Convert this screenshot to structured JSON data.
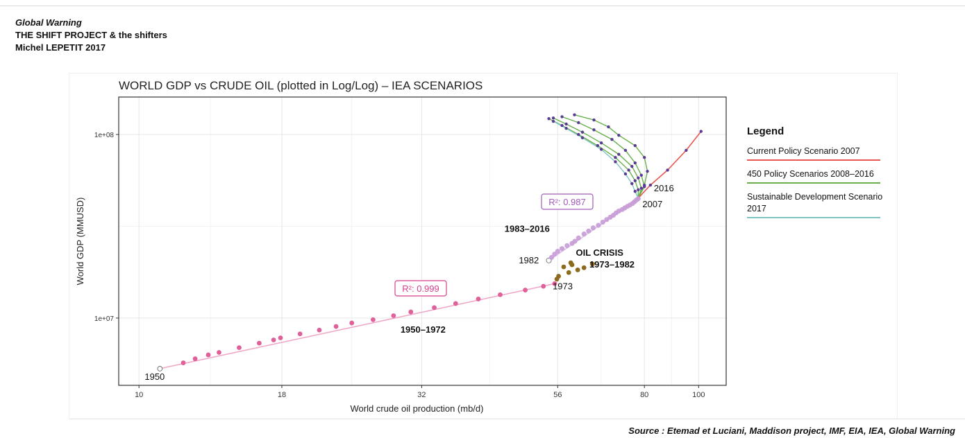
{
  "header": {
    "line1": "Global Warning",
    "line2": "THE SHIFT PROJECT & the shifters",
    "line3": "Michel LEPETIT 2017"
  },
  "source": "Source : Etemad et Luciani, Maddison project, IMF, EIA, IEA, Global Warning",
  "legend": {
    "title": "Legend",
    "items": [
      {
        "label": "Current Policy Scenario 2007",
        "color": "#e8574f"
      },
      {
        "label": "450 Policy Scenarios 2008–2016",
        "color": "#66b04a"
      },
      {
        "label": "Sustainable Development Scenario 2017",
        "color": "#7fc4c4"
      }
    ]
  },
  "chart_data": {
    "type": "scatter",
    "title": "WORLD GDP vs CRUDE OIL (plotted in Log/Log) – IEA SCENARIOS",
    "xlabel": "World crude oil production (mb/d)",
    "ylabel": "World GDP (MMUSD)",
    "x_scale": "log",
    "y_scale": "log",
    "xlim": [
      9.2,
      112
    ],
    "ylim": [
      4300000,
      160000000
    ],
    "x_ticks": [
      10,
      18,
      32,
      56,
      80,
      100
    ],
    "x_tick_labels": [
      "10",
      "18",
      "32",
      "56",
      "80",
      "100"
    ],
    "y_ticks": [
      10000000,
      100000000
    ],
    "y_tick_labels": [
      "1e+07",
      "1e+08"
    ],
    "grid": true,
    "colors": {
      "series_1950_1972": "#e0609a",
      "series_oil_crisis": "#8b6a1c",
      "series_1983_2016": "#c79bd6",
      "scenario_points": "#5a3c96",
      "current_policy": "#e8574f",
      "policy_450": "#66b04a",
      "sustainable": "#7fc4c4",
      "r2_1950": "#d63f8c",
      "r2_1983": "#a05ab8"
    },
    "series": [
      {
        "name": "1950–1972",
        "fit_r2": "R²: 0.999",
        "x": [
          10.9,
          12.0,
          12.6,
          13.3,
          13.9,
          15.1,
          16.4,
          17.4,
          17.9,
          19.4,
          21.0,
          22.5,
          24.0,
          26.2,
          28.5,
          30.6,
          33.7,
          36.8,
          40.4,
          44.2,
          49.0,
          52.8,
          55.3
        ],
        "y": [
          5300000,
          5700000,
          6000000,
          6300000,
          6500000,
          6900000,
          7300000,
          7600000,
          7800000,
          8200000,
          8600000,
          9000000,
          9400000,
          9800000,
          10300000,
          10800000,
          11400000,
          12000000,
          12700000,
          13400000,
          14200000,
          14900000,
          15400000
        ]
      },
      {
        "name": "OIL CRISIS 1973–1982",
        "x": [
          55.8,
          56.2,
          57.4,
          58.6,
          59.1,
          59.4,
          60.8,
          62.4,
          64.6
        ],
        "y": [
          16300000,
          16900000,
          19000000,
          17700000,
          20000000,
          19500000,
          18300000,
          18800000,
          19700000
        ]
      },
      {
        "name": "1983–2016",
        "fit_r2": "R²: 0.987",
        "x": [
          54.0,
          54.6,
          55.3,
          56.0,
          57.0,
          58.2,
          59.4,
          60.1,
          61.0,
          62.4,
          63.6,
          64.8,
          66.2,
          67.4,
          68.5,
          69.5,
          70.4,
          71.2,
          72.0,
          73.0,
          73.8,
          74.6,
          75.4,
          76.2,
          76.8,
          77.4,
          78.0
        ],
        "y": [
          20600000,
          21400000,
          22300000,
          23100000,
          23900000,
          24800000,
          25500000,
          26200000,
          27300000,
          28700000,
          29800000,
          31000000,
          32000000,
          33300000,
          34400000,
          35400000,
          36300000,
          37400000,
          38300000,
          39000000,
          39800000,
          40600000,
          41300000,
          42100000,
          43000000,
          43900000,
          44700000
        ]
      }
    ],
    "scenarios": {
      "current_policy": {
        "x": [
          78,
          82,
          88,
          95,
          101
        ],
        "y": [
          45000000,
          53000000,
          64000000,
          82000000,
          104000000
        ]
      },
      "policy_450": [
        {
          "x": [
            78,
            80,
            81,
            80,
            77,
            72,
            69,
            65,
            60
          ],
          "y": [
            45000000,
            53000000,
            63000000,
            75000000,
            87000000,
            99000000,
            110000000,
            120000000,
            128000000
          ]
        },
        {
          "x": [
            78,
            80,
            79,
            77,
            74,
            70,
            65,
            61,
            57
          ],
          "y": [
            45000000,
            52000000,
            60000000,
            70000000,
            82000000,
            94000000,
            106000000,
            116000000,
            125000000
          ]
        },
        {
          "x": [
            78,
            79,
            78,
            76,
            72,
            67,
            62,
            58,
            55
          ],
          "y": [
            45000000,
            51000000,
            58000000,
            67000000,
            78000000,
            90000000,
            103000000,
            114000000,
            123000000
          ]
        },
        {
          "x": [
            78,
            78,
            77,
            75,
            71,
            66,
            61,
            57,
            54
          ],
          "y": [
            45000000,
            50000000,
            56000000,
            64000000,
            75000000,
            87000000,
            100000000,
            112000000,
            122000000
          ]
        }
      ],
      "sustainable": {
        "x": [
          78,
          77,
          76,
          74,
          71,
          67,
          62,
          58,
          55
        ],
        "y": [
          45000000,
          49000000,
          54000000,
          61000000,
          71000000,
          83000000,
          96000000,
          108000000,
          118000000
        ]
      }
    },
    "annotations": [
      {
        "text": "1950",
        "x": 10.9,
        "y": 5300000
      },
      {
        "text": "1950–1972",
        "x": 30,
        "y": 9400000
      },
      {
        "text": "1973",
        "x": 55.8,
        "y": 16300000
      },
      {
        "text": "1982",
        "x": 53.5,
        "y": 20600000
      },
      {
        "text": "OIL CRISIS",
        "x": 60,
        "y": 20600000
      },
      {
        "text": "1973–1982",
        "x": 62,
        "y": 20600000
      },
      {
        "text": "1983–2016",
        "x": 45,
        "y": 30000000
      },
      {
        "text": "2007",
        "x": 78,
        "y": 45000000
      },
      {
        "text": "2016",
        "x": 82,
        "y": 53000000
      }
    ]
  }
}
